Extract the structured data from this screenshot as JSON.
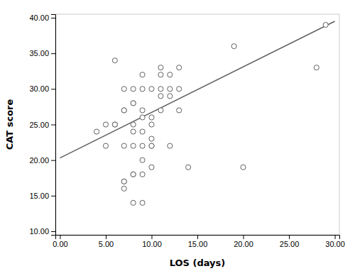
{
  "chart_data": {
    "type": "scatter",
    "series": [
      {
        "type": "scatter",
        "marker": "circle",
        "color": "#606060",
        "x": [
          4,
          5,
          5,
          6,
          6,
          6,
          7,
          7,
          7,
          7,
          7,
          7,
          7,
          8,
          8,
          8,
          8,
          8,
          8,
          8,
          8,
          8,
          9,
          9,
          9,
          9,
          9,
          9,
          9,
          9,
          9,
          10,
          10,
          10,
          10,
          10,
          10,
          10,
          11,
          11,
          11,
          11,
          11,
          12,
          12,
          12,
          12,
          13,
          13,
          13,
          14,
          19,
          20,
          28,
          29
        ],
        "values": [
          24,
          22,
          25,
          25,
          25,
          34,
          17,
          17,
          16,
          22,
          27,
          27,
          30,
          18,
          18,
          14,
          22,
          24,
          25,
          28,
          28,
          30,
          14,
          18,
          20,
          24,
          26,
          27,
          32,
          30,
          22,
          19,
          22,
          22,
          23,
          25,
          26,
          30,
          27,
          29,
          30,
          32,
          33,
          22,
          29,
          30,
          32,
          27,
          30,
          33,
          19,
          36,
          19,
          33,
          39
        ]
      },
      {
        "type": "line",
        "line_style": "solid",
        "color": "#606060",
        "x": [
          0,
          30
        ],
        "values": [
          20.3,
          39.5
        ]
      }
    ],
    "x_label": "LOS (days)",
    "y_label": "CAT score",
    "xlim": [
      -0.5,
      30.5
    ],
    "ylim": [
      9.5,
      40.5
    ],
    "xticks": [
      {
        "value": 0,
        "label": "0.00"
      },
      {
        "value": 5,
        "label": "5.00"
      },
      {
        "value": 10,
        "label": "10.00"
      },
      {
        "value": 15,
        "label": "15.00"
      },
      {
        "value": 20,
        "label": "20.00"
      },
      {
        "value": 25,
        "label": "25.00"
      },
      {
        "value": 30,
        "label": "30.00"
      }
    ],
    "yticks": [
      {
        "value": 10,
        "label": "10.00"
      },
      {
        "value": 15,
        "label": "15.00"
      },
      {
        "value": 20,
        "label": "20.00"
      },
      {
        "value": 25,
        "label": "25.00"
      },
      {
        "value": 30,
        "label": "30.00"
      },
      {
        "value": 35,
        "label": "35.00"
      },
      {
        "value": 40,
        "label": "40.00"
      }
    ],
    "grid": false
  }
}
